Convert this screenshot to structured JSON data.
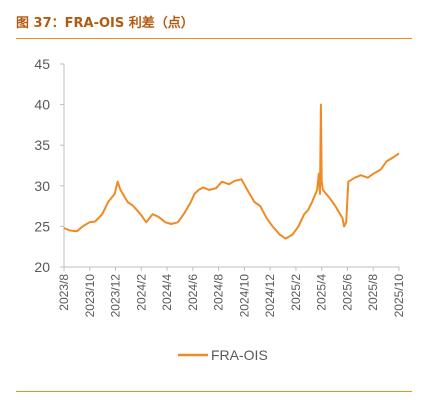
{
  "header": {
    "title": "图 37：FRA-OIS 利差（点）"
  },
  "colors": {
    "accent": "#f08a24",
    "line": "#f08a24",
    "axis": "#bfbfbf",
    "text": "#595959"
  },
  "chart_data": {
    "type": "line",
    "title": "",
    "xlabel": "",
    "ylabel": "",
    "ylim": [
      20,
      45
    ],
    "yticks": [
      20,
      25,
      30,
      35,
      40,
      45
    ],
    "x_tick_labels": [
      "2023/8",
      "2023/10",
      "2023/12",
      "2024/2",
      "2024/4",
      "2024/6",
      "2024/8",
      "2024/10",
      "2024/12",
      "2025/2",
      "2025/4",
      "2025/6",
      "2025/8",
      "2025/10"
    ],
    "legend": {
      "position": "bottom",
      "entries": [
        "FRA-OIS"
      ]
    },
    "series": [
      {
        "name": "FRA-OIS",
        "x": [
          "2023-08-01",
          "2023-08-15",
          "2023-09-01",
          "2023-09-15",
          "2023-10-01",
          "2023-10-15",
          "2023-11-01",
          "2023-11-15",
          "2023-12-01",
          "2023-12-08",
          "2023-12-15",
          "2024-01-01",
          "2024-01-15",
          "2024-02-01",
          "2024-02-15",
          "2024-03-01",
          "2024-03-15",
          "2024-04-01",
          "2024-04-15",
          "2024-05-01",
          "2024-05-15",
          "2024-06-01",
          "2024-06-10",
          "2024-06-20",
          "2024-07-01",
          "2024-07-15",
          "2024-08-01",
          "2024-08-15",
          "2024-09-01",
          "2024-09-15",
          "2024-10-01",
          "2024-10-15",
          "2024-11-01",
          "2024-11-15",
          "2024-12-01",
          "2024-12-15",
          "2025-01-01",
          "2025-01-15",
          "2025-02-01",
          "2025-02-15",
          "2025-03-01",
          "2025-03-10",
          "2025-03-20",
          "2025-04-01",
          "2025-04-05",
          "2025-04-08",
          "2025-04-10",
          "2025-04-12",
          "2025-04-15",
          "2025-05-01",
          "2025-05-15",
          "2025-06-01",
          "2025-06-05",
          "2025-06-10",
          "2025-06-15",
          "2025-07-01",
          "2025-07-15",
          "2025-08-01",
          "2025-08-15",
          "2025-09-01",
          "2025-09-15",
          "2025-10-01",
          "2025-10-15"
        ],
        "values": [
          24.8,
          24.5,
          24.4,
          25.0,
          25.5,
          25.6,
          26.5,
          28.0,
          29.0,
          30.5,
          29.5,
          28.0,
          27.5,
          26.5,
          25.5,
          26.5,
          26.2,
          25.5,
          25.3,
          25.5,
          26.5,
          28.0,
          29.0,
          29.5,
          29.8,
          29.5,
          29.7,
          30.5,
          30.2,
          30.6,
          30.8,
          29.5,
          28.0,
          27.5,
          26.0,
          25.0,
          24.0,
          23.5,
          24.0,
          25.0,
          26.5,
          27.0,
          28.0,
          29.5,
          31.5,
          29.0,
          40.0,
          30.5,
          29.5,
          28.5,
          27.5,
          26.0,
          25.0,
          25.5,
          30.5,
          31.0,
          31.3,
          31.0,
          31.5,
          32.0,
          33.0,
          33.5,
          34.0
        ]
      }
    ]
  }
}
